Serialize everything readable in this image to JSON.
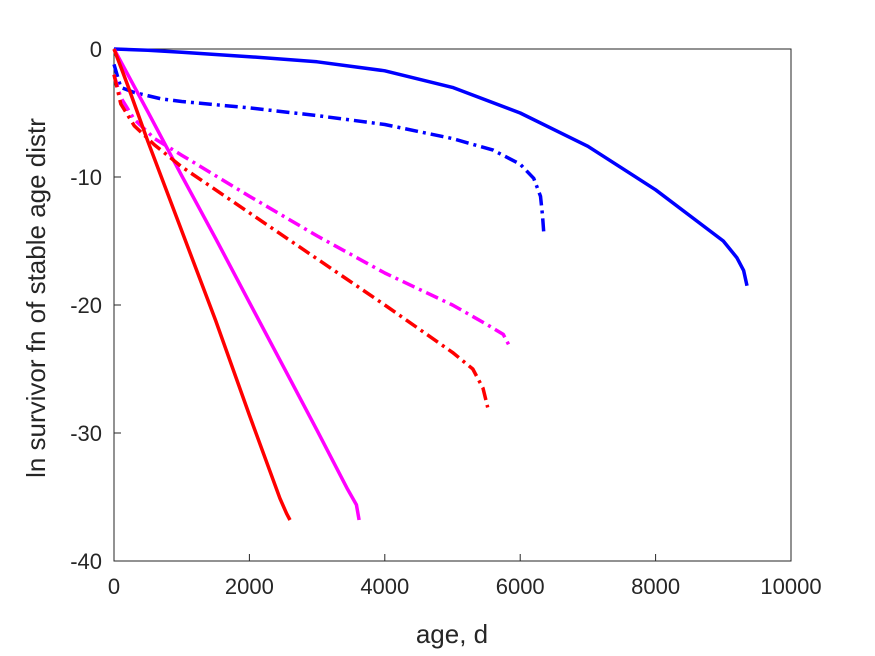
{
  "chart_data": {
    "type": "line",
    "xlabel": "age, d",
    "ylabel": "ln survivor fn of stable age distr",
    "xlim": [
      0,
      10000
    ],
    "ylim": [
      -40,
      0
    ],
    "xticks": [
      0,
      2000,
      4000,
      6000,
      8000,
      10000
    ],
    "yticks": [
      0,
      -10,
      -20,
      -30,
      -40
    ],
    "xtick_labels": [
      "0",
      "2000",
      "4000",
      "6000",
      "8000",
      "10000"
    ],
    "ytick_labels": [
      "0",
      "-10",
      "-20",
      "-30",
      "-40"
    ],
    "grid": false,
    "legend": "none",
    "series": [
      {
        "color": "#0000ff",
        "style": "solid",
        "x": [
          0,
          500,
          1000,
          2000,
          3000,
          4000,
          5000,
          6000,
          7000,
          8000,
          8500,
          9000,
          9200,
          9300,
          9350
        ],
        "y": [
          0,
          -0.1,
          -0.25,
          -0.6,
          -1.0,
          -1.7,
          -3.0,
          -5.0,
          -7.6,
          -11.0,
          -13.0,
          -15.0,
          -16.3,
          -17.3,
          -18.5
        ]
      },
      {
        "color": "#0000ff",
        "style": "dashdot",
        "x": [
          0,
          100,
          300,
          700,
          1000,
          2000,
          3000,
          4000,
          5000,
          5600,
          6000,
          6200,
          6300,
          6330,
          6350
        ],
        "y": [
          -1.2,
          -3.0,
          -3.4,
          -3.9,
          -4.1,
          -4.6,
          -5.2,
          -5.9,
          -7.0,
          -7.9,
          -9.0,
          -10.1,
          -11.5,
          -13.0,
          -14.5
        ]
      },
      {
        "color": "#ff00ff",
        "style": "solid",
        "x": [
          0,
          500,
          1000,
          1500,
          2000,
          2500,
          3000,
          3450,
          3580,
          3620
        ],
        "y": [
          0,
          -4.9,
          -9.9,
          -14.8,
          -19.8,
          -24.8,
          -29.8,
          -34.4,
          -35.6,
          -36.8
        ]
      },
      {
        "color": "#ff00ff",
        "style": "dashdot",
        "x": [
          0,
          100,
          300,
          600,
          1000,
          2000,
          3000,
          4000,
          5000,
          5500,
          5750,
          5850
        ],
        "y": [
          -2.0,
          -3.8,
          -5.5,
          -7.0,
          -8.3,
          -11.5,
          -14.6,
          -17.5,
          -20.0,
          -21.5,
          -22.3,
          -23.3
        ]
      },
      {
        "color": "#ff0000",
        "style": "solid",
        "x": [
          0,
          200,
          500,
          1000,
          1500,
          2000,
          2450,
          2550,
          2600
        ],
        "y": [
          0,
          -2.8,
          -7.2,
          -14.2,
          -21.2,
          -28.6,
          -35.1,
          -36.3,
          -36.8
        ]
      },
      {
        "color": "#ff0000",
        "style": "dashdot",
        "x": [
          0,
          100,
          300,
          600,
          1000,
          2000,
          3000,
          4000,
          5000,
          5300,
          5450,
          5520
        ],
        "y": [
          -2.0,
          -4.3,
          -6.0,
          -7.5,
          -9.2,
          -12.8,
          -16.4,
          -20.0,
          -23.7,
          -25.0,
          -26.5,
          -28.0
        ]
      }
    ]
  }
}
